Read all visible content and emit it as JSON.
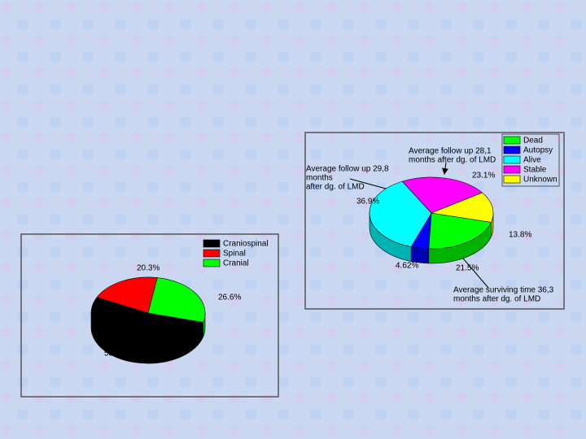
{
  "chart_data": [
    {
      "type": "pie",
      "categories": [
        "Craniospinal",
        "Spinal",
        "Cranial"
      ],
      "values": [
        53.1,
        20.3,
        26.6
      ],
      "value_labels": [
        "53.1%",
        "20.3%",
        "26.6%"
      ],
      "colors": [
        "#000000",
        "#ff0000",
        "#00ff00"
      ]
    },
    {
      "type": "pie",
      "categories": [
        "Dead",
        "Autopsy",
        "Alive",
        "Stable",
        "Unknown"
      ],
      "values": [
        21.5,
        4.62,
        36.9,
        23.1,
        13.8
      ],
      "value_labels": [
        "21.5%",
        "4.62%",
        "36.9%",
        "23.1%",
        "13.8%"
      ],
      "colors": [
        "#00ff00",
        "#0000ff",
        "#00ffff",
        "#ff00ff",
        "#ffff00"
      ],
      "annotations": [
        [
          "Average follow up 28,1",
          "months after dg. of LMD"
        ],
        [
          "Average follow up 29,8",
          "months",
          "after dg. of LMD"
        ],
        [
          "Average surviving time 36,3",
          "months after dg. of LMD"
        ]
      ]
    }
  ]
}
